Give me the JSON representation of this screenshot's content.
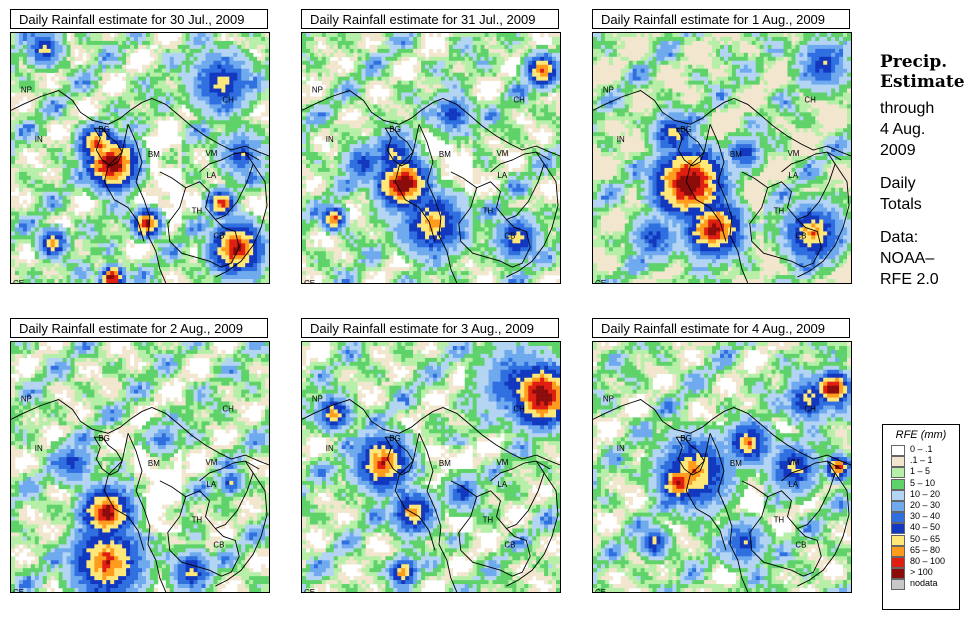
{
  "panels": [
    {
      "title": "Daily Rainfall estimate for  30 Jul., 2009",
      "day": 0
    },
    {
      "title": "Daily Rainfall estimate for  31 Jul., 2009",
      "day": 1
    },
    {
      "title": "Daily Rainfall estimate for  1 Aug., 2009",
      "day": 2
    },
    {
      "title": "Daily Rainfall estimate for  2 Aug., 2009",
      "day": 3
    },
    {
      "title": "Daily Rainfall estimate for  3 Aug., 2009",
      "day": 4
    },
    {
      "title": "Daily Rainfall estimate for  4 Aug., 2009",
      "day": 5
    }
  ],
  "country_labels": [
    "NP",
    "CH",
    "IN",
    "BG",
    "BM",
    "VM",
    "LA",
    "TH",
    "CB",
    "CE"
  ],
  "side": {
    "line1": "Precip.",
    "line2": "Estimate",
    "line3": "through",
    "line4": "4 Aug.",
    "line5": "2009",
    "line6": "Daily",
    "line7": "Totals",
    "line8": "Data:",
    "line9": "NOAA–",
    "line10": "RFE 2.0"
  },
  "legend": {
    "title": "RFE (mm)",
    "items": [
      {
        "label": "0 – .1",
        "color": "#ffffff"
      },
      {
        "label": ".1 – 1",
        "color": "#f2e6cf"
      },
      {
        "label": "1 – 5",
        "color": "#b7efa8"
      },
      {
        "label": "5 – 10",
        "color": "#5fd26a"
      },
      {
        "label": "10 – 20",
        "color": "#b4d4f4"
      },
      {
        "label": "20 – 30",
        "color": "#6fa9ee"
      },
      {
        "label": "30 – 40",
        "color": "#2f6fe0"
      },
      {
        "label": "40 – 50",
        "color": "#1238c0"
      },
      {
        "label": "50 – 65",
        "color": "#ffe878"
      },
      {
        "label": "65 – 80",
        "color": "#ff9c1e"
      },
      {
        "label": "80 – 100",
        "color": "#e01e12"
      },
      {
        "label": "> 100",
        "color": "#8c0c0c"
      },
      {
        "label": "nodata",
        "color": "#c8c8c8"
      }
    ]
  }
}
